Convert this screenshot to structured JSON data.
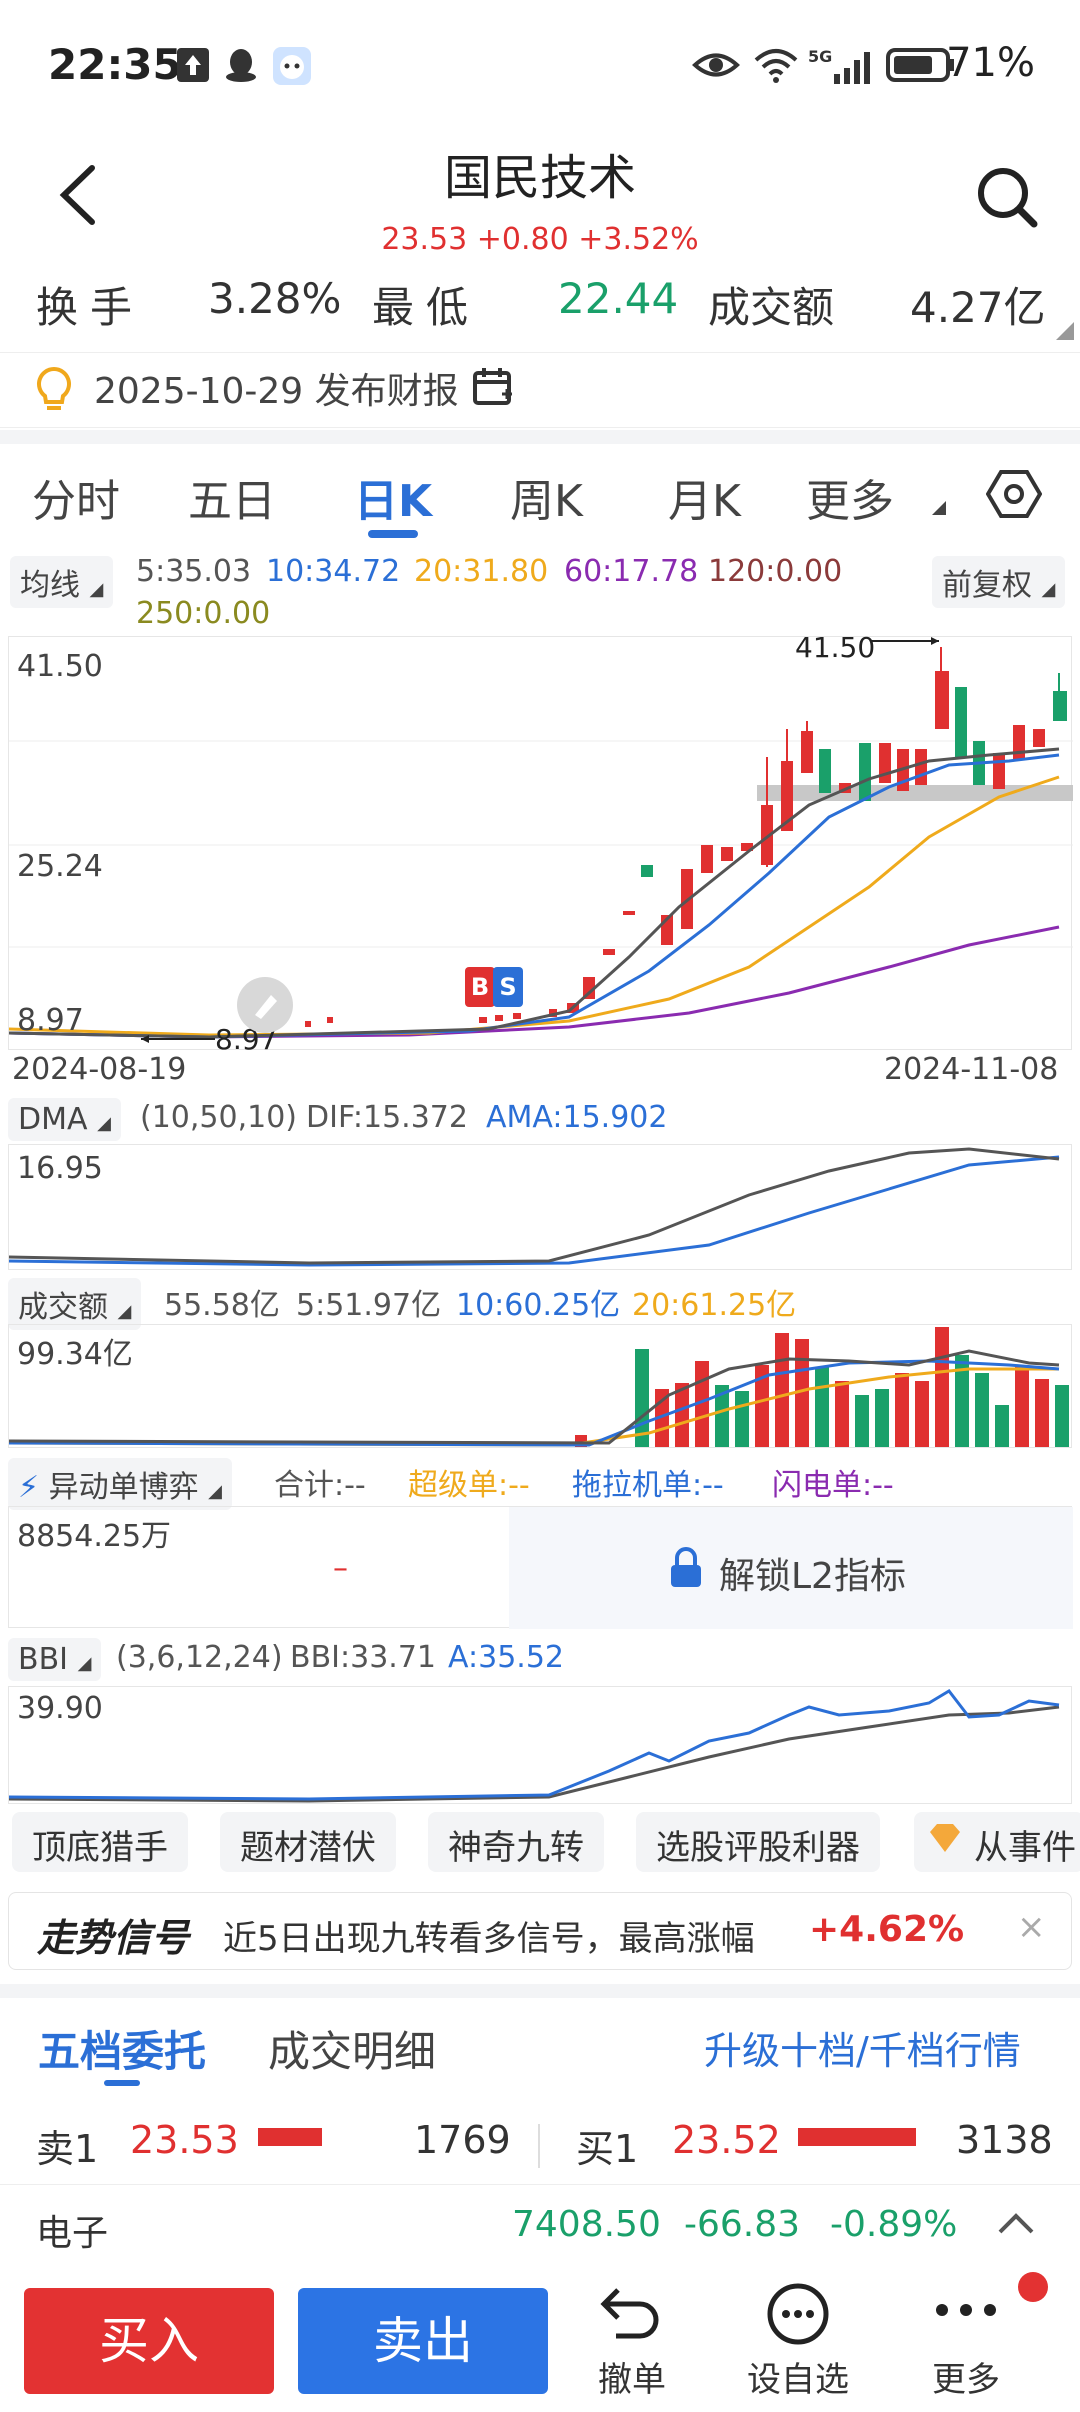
{
  "status_bar": {
    "time": "22:35",
    "battery": "71%"
  },
  "header": {
    "title": "国民技术",
    "quote": "23.53 +0.80 +3.52%"
  },
  "info_row": {
    "turnover_label": "换手",
    "turnover_value": "3.28%",
    "low_label": "最低",
    "low_value": "22.44",
    "amount_label": "成交额",
    "amount_value": "4.27亿"
  },
  "notice": {
    "text": "2025-10-29 发布财报"
  },
  "period_tabs": [
    "分时",
    "五日",
    "日K",
    "周K",
    "月K",
    "更多"
  ],
  "ma_bar": {
    "label": "均线",
    "ma5": "5:35.03",
    "ma10": "10:34.72",
    "ma20": "20:31.80",
    "ma60": "60:17.78",
    "ma120": "120:0.00",
    "ma250": "250:0.00",
    "adjust": "前复权"
  },
  "kline": {
    "y_top": "41.50",
    "y_mid": "25.24",
    "y_low": "8.97",
    "high_marker": "41.50",
    "low_marker": "8.97",
    "date_start": "2024-08-19",
    "date_end": "2024-11-08",
    "bs_b": "B",
    "bs_s": "S"
  },
  "dma": {
    "label": "DMA",
    "params": "(10,50,10)",
    "dif": "DIF:15.372",
    "ama": "AMA:15.902",
    "y_top": "16.95"
  },
  "volume": {
    "label": "成交额",
    "v0": "55.58亿",
    "v5": "5:51.97亿",
    "v10": "10:60.25亿",
    "v20": "20:61.25亿",
    "y_top": "99.34亿"
  },
  "abnormal": {
    "label": "异动单博弈",
    "total": "合计:--",
    "super": "超级单:--",
    "drag": "拖拉机单:--",
    "flash": "闪电单:--",
    "y_top": "8854.25万",
    "dash": "–",
    "unlock": "解锁L2指标"
  },
  "bbi": {
    "label": "BBI",
    "params": "(3,6,12,24)",
    "bbi": "BBI:33.71",
    "a": "A:35.52",
    "y_top": "39.90"
  },
  "features": [
    "顶底猎手",
    "题材潜伏",
    "神奇九转",
    "选股评股利器",
    "从事件"
  ],
  "signal": {
    "title": "走势信号",
    "text": "近5日出现九转看多信号，最高涨幅",
    "pct": "+4.62%",
    "close": "×"
  },
  "order_book": {
    "tab_active": "五档委托",
    "tab_other": "成交明细",
    "upgrade": "升级十档/千档行情",
    "sell1_label": "卖1",
    "sell1_price": "23.53",
    "sell1_vol": "1769",
    "buy1_label": "买1",
    "buy1_price": "23.52",
    "buy1_vol": "3138"
  },
  "sector": {
    "name": "电子",
    "index": "7408.50",
    "change": "-66.83",
    "pct": "-0.89%"
  },
  "bottom": {
    "buy": "买入",
    "sell": "卖出",
    "cancel": "撤单",
    "watch": "设自选",
    "more": "更多"
  },
  "colors": {
    "up": "#e03030",
    "down": "#1aa06a",
    "accent": "#2b6fd6"
  }
}
